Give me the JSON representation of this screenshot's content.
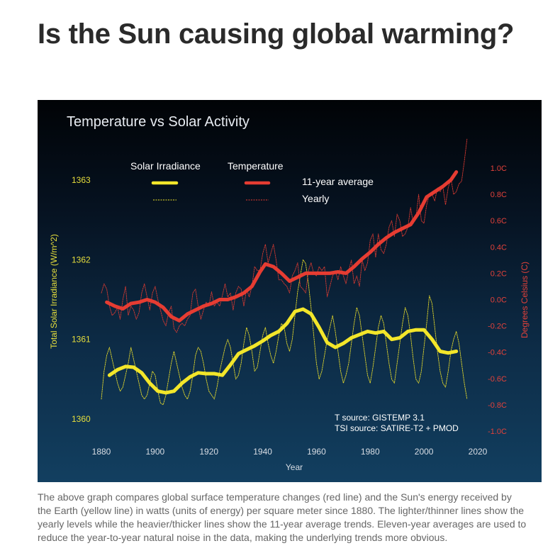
{
  "page": {
    "title": "Is the Sun causing global warming?",
    "caption": "The above graph compares global surface temperature changes (red line) and the Sun's energy received by the Earth (yellow line) in watts (units of energy) per square meter since 1880. The lighter/thinner lines show the yearly levels while the heavier/thicker lines show the 11-year average trends. Eleven-year averages are used to reduce the year-to-year natural noise in the data, making the underlying trends more obvious."
  },
  "colors": {
    "solar": "#f3e62a",
    "temperature": "#e63c32"
  },
  "chart_data": {
    "type": "line",
    "title": "Temperature vs Solar Activity",
    "xlabel": "Year",
    "ylabel_left": "Total Solar Irradiance (W/m^2)",
    "ylabel_right": "Degrees Celsius (C)",
    "xlim": [
      1870,
      2020
    ],
    "ylim_left": [
      1359.8,
      1363.2
    ],
    "ylim_right": [
      -1.0,
      1.0
    ],
    "x_ticks": [
      1880,
      1900,
      1920,
      1940,
      1960,
      1980,
      2000,
      2020
    ],
    "y_ticks_left": [
      1360,
      1361,
      1362,
      1363
    ],
    "y_ticks_right": [
      {
        "value": 1.0,
        "label": "1.0C"
      },
      {
        "value": 0.8,
        "label": "0.8C"
      },
      {
        "value": 0.6,
        "label": "0.6C"
      },
      {
        "value": 0.4,
        "label": "0.4C"
      },
      {
        "value": 0.2,
        "label": "0.2C"
      },
      {
        "value": 0.0,
        "label": "0.0C"
      },
      {
        "value": -0.2,
        "label": "-0.2C"
      },
      {
        "value": -0.4,
        "label": "-0.4C"
      },
      {
        "value": -0.6,
        "label": "-0.6C"
      },
      {
        "value": -0.8,
        "label": "-0.8C"
      },
      {
        "value": -1.0,
        "label": "-1.0C"
      }
    ],
    "legend": {
      "placement": "top-left",
      "col_solar": "Solar Irradiance",
      "col_temperature": "Temperature",
      "row_average": "11-year average",
      "row_yearly": "Yearly"
    },
    "sources": {
      "temperature": "T source: GISTEMP 3.1",
      "solar": "TSI source: SATIRE-T2 + PMOD"
    },
    "series": [
      {
        "name": "Temperature 11-year average",
        "axis": "right",
        "style": "thick",
        "x": [
          1882,
          1885,
          1888,
          1891,
          1894,
          1897,
          1900,
          1903,
          1906,
          1909,
          1912,
          1915,
          1918,
          1921,
          1924,
          1927,
          1930,
          1933,
          1936,
          1939,
          1941,
          1944,
          1947,
          1950,
          1953,
          1956,
          1959,
          1962,
          1965,
          1968,
          1971,
          1974,
          1977,
          1980,
          1983,
          1986,
          1989,
          1992,
          1995,
          1998,
          2001,
          2004,
          2007,
          2010,
          2012
        ],
        "y": [
          -0.02,
          -0.05,
          -0.07,
          -0.03,
          -0.02,
          0.0,
          -0.02,
          -0.06,
          -0.13,
          -0.16,
          -0.11,
          -0.08,
          -0.05,
          -0.03,
          0.0,
          0.0,
          0.02,
          0.05,
          0.1,
          0.21,
          0.27,
          0.25,
          0.2,
          0.14,
          0.17,
          0.2,
          0.2,
          0.2,
          0.2,
          0.21,
          0.2,
          0.25,
          0.31,
          0.36,
          0.42,
          0.47,
          0.51,
          0.54,
          0.57,
          0.66,
          0.78,
          0.82,
          0.86,
          0.91,
          0.97
        ]
      },
      {
        "name": "Temperature yearly",
        "axis": "right",
        "style": "thin",
        "x": [
          1880,
          1881,
          1882,
          1883,
          1884,
          1885,
          1886,
          1887,
          1888,
          1889,
          1890,
          1891,
          1892,
          1893,
          1894,
          1895,
          1896,
          1897,
          1898,
          1899,
          1900,
          1901,
          1902,
          1903,
          1904,
          1905,
          1906,
          1907,
          1908,
          1909,
          1910,
          1911,
          1912,
          1913,
          1914,
          1915,
          1916,
          1917,
          1918,
          1919,
          1920,
          1921,
          1922,
          1923,
          1924,
          1925,
          1926,
          1927,
          1928,
          1929,
          1930,
          1931,
          1932,
          1933,
          1934,
          1935,
          1936,
          1937,
          1938,
          1939,
          1940,
          1941,
          1942,
          1943,
          1944,
          1945,
          1946,
          1947,
          1948,
          1949,
          1950,
          1951,
          1952,
          1953,
          1954,
          1955,
          1956,
          1957,
          1958,
          1959,
          1960,
          1961,
          1962,
          1963,
          1964,
          1965,
          1966,
          1967,
          1968,
          1969,
          1970,
          1971,
          1972,
          1973,
          1974,
          1975,
          1976,
          1977,
          1978,
          1979,
          1980,
          1981,
          1982,
          1983,
          1984,
          1985,
          1986,
          1987,
          1988,
          1989,
          1990,
          1991,
          1992,
          1993,
          1994,
          1995,
          1996,
          1997,
          1998,
          1999,
          2000,
          2001,
          2002,
          2003,
          2004,
          2005,
          2006,
          2007,
          2008,
          2009,
          2010,
          2011,
          2012,
          2013,
          2014,
          2015,
          2016
        ],
        "y": [
          0.05,
          0.12,
          0.08,
          -0.05,
          -0.12,
          -0.1,
          -0.06,
          -0.15,
          0.0,
          0.1,
          -0.12,
          -0.05,
          -0.08,
          -0.15,
          -0.1,
          0.05,
          0.12,
          0.02,
          -0.08,
          0.05,
          0.1,
          0.0,
          -0.08,
          -0.16,
          -0.2,
          -0.1,
          -0.05,
          -0.22,
          -0.25,
          -0.2,
          -0.18,
          -0.2,
          -0.15,
          -0.12,
          0.05,
          0.08,
          -0.05,
          -0.15,
          -0.08,
          -0.02,
          -0.05,
          0.06,
          -0.05,
          -0.02,
          -0.05,
          0.03,
          0.12,
          0.02,
          0.05,
          -0.08,
          0.05,
          0.1,
          0.08,
          -0.05,
          0.08,
          0.02,
          0.1,
          0.25,
          0.22,
          0.22,
          0.35,
          0.42,
          0.28,
          0.35,
          0.42,
          0.3,
          0.15,
          0.15,
          0.12,
          0.1,
          0.05,
          0.18,
          0.22,
          0.28,
          0.1,
          0.08,
          0.05,
          0.22,
          0.28,
          0.2,
          0.18,
          0.25,
          0.22,
          0.25,
          0.02,
          0.1,
          0.18,
          0.22,
          0.15,
          0.25,
          0.18,
          0.12,
          0.22,
          0.3,
          0.12,
          0.18,
          0.1,
          0.3,
          0.22,
          0.28,
          0.45,
          0.5,
          0.32,
          0.5,
          0.38,
          0.35,
          0.42,
          0.55,
          0.6,
          0.48,
          0.65,
          0.6,
          0.48,
          0.5,
          0.55,
          0.7,
          0.58,
          0.62,
          0.8,
          0.6,
          0.58,
          0.72,
          0.8,
          0.8,
          0.75,
          0.85,
          0.82,
          0.86,
          0.72,
          0.85,
          0.92,
          0.8,
          0.82,
          0.88,
          0.9,
          1.05,
          1.22
        ]
      },
      {
        "name": "Solar Irradiance 11-year average",
        "axis": "left",
        "style": "thick",
        "x": [
          1883,
          1886,
          1889,
          1892,
          1895,
          1898,
          1901,
          1904,
          1907,
          1910,
          1913,
          1916,
          1919,
          1922,
          1925,
          1928,
          1931,
          1934,
          1937,
          1940,
          1943,
          1946,
          1949,
          1952,
          1955,
          1958,
          1961,
          1964,
          1967,
          1970,
          1973,
          1976,
          1979,
          1982,
          1985,
          1988,
          1991,
          1994,
          1997,
          2000,
          2003,
          2006,
          2009,
          2012
        ],
        "y": [
          1360.55,
          1360.62,
          1360.66,
          1360.65,
          1360.58,
          1360.45,
          1360.35,
          1360.33,
          1360.35,
          1360.45,
          1360.53,
          1360.58,
          1360.57,
          1360.57,
          1360.55,
          1360.68,
          1360.82,
          1360.87,
          1360.92,
          1360.98,
          1361.05,
          1361.1,
          1361.2,
          1361.35,
          1361.38,
          1361.32,
          1361.15,
          1360.96,
          1360.9,
          1360.95,
          1361.02,
          1361.06,
          1361.1,
          1361.08,
          1361.1,
          1361.0,
          1361.02,
          1361.1,
          1361.12,
          1361.12,
          1361.0,
          1360.85,
          1360.83,
          1360.85
        ]
      },
      {
        "name": "Solar Irradiance yearly",
        "axis": "left",
        "style": "thin",
        "x": [
          1880,
          1881,
          1882,
          1883,
          1884,
          1885,
          1886,
          1887,
          1888,
          1889,
          1890,
          1891,
          1892,
          1893,
          1894,
          1895,
          1896,
          1897,
          1898,
          1899,
          1900,
          1901,
          1902,
          1903,
          1904,
          1905,
          1906,
          1907,
          1908,
          1909,
          1910,
          1911,
          1912,
          1913,
          1914,
          1915,
          1916,
          1917,
          1918,
          1919,
          1920,
          1921,
          1922,
          1923,
          1924,
          1925,
          1926,
          1927,
          1928,
          1929,
          1930,
          1931,
          1932,
          1933,
          1934,
          1935,
          1936,
          1937,
          1938,
          1939,
          1940,
          1941,
          1942,
          1943,
          1944,
          1945,
          1946,
          1947,
          1948,
          1949,
          1950,
          1951,
          1952,
          1953,
          1954,
          1955,
          1956,
          1957,
          1958,
          1959,
          1960,
          1961,
          1962,
          1963,
          1964,
          1965,
          1966,
          1967,
          1968,
          1969,
          1970,
          1971,
          1972,
          1973,
          1974,
          1975,
          1976,
          1977,
          1978,
          1979,
          1980,
          1981,
          1982,
          1983,
          1984,
          1985,
          1986,
          1987,
          1988,
          1989,
          1990,
          1991,
          1992,
          1993,
          1994,
          1995,
          1996,
          1997,
          1998,
          1999,
          2000,
          2001,
          2002,
          2003,
          2004,
          2005,
          2006,
          2007,
          2008,
          2009,
          2010,
          2011,
          2012,
          2013,
          2014,
          2015,
          2016
        ],
        "y": [
          1360.25,
          1360.6,
          1360.8,
          1360.9,
          1360.75,
          1360.6,
          1360.45,
          1360.35,
          1360.4,
          1360.55,
          1360.7,
          1360.9,
          1360.75,
          1360.6,
          1360.45,
          1360.3,
          1360.25,
          1360.3,
          1360.45,
          1360.6,
          1360.55,
          1360.35,
          1360.2,
          1360.18,
          1360.3,
          1360.5,
          1360.7,
          1360.85,
          1360.7,
          1360.55,
          1360.4,
          1360.3,
          1360.25,
          1360.35,
          1360.55,
          1360.8,
          1360.9,
          1360.85,
          1360.7,
          1360.5,
          1360.35,
          1360.3,
          1360.25,
          1360.4,
          1360.6,
          1360.75,
          1360.9,
          1361.0,
          1360.9,
          1360.7,
          1360.5,
          1360.55,
          1360.7,
          1360.95,
          1361.15,
          1361.05,
          1360.85,
          1360.6,
          1360.65,
          1360.85,
          1361.05,
          1361.15,
          1360.95,
          1360.8,
          1360.7,
          1360.85,
          1361.05,
          1361.2,
          1361.15,
          1360.95,
          1360.85,
          1361.0,
          1361.3,
          1361.6,
          1361.8,
          1362.0,
          1361.95,
          1361.7,
          1361.4,
          1361.05,
          1360.7,
          1360.5,
          1360.6,
          1360.8,
          1361.0,
          1361.15,
          1361.3,
          1361.1,
          1360.85,
          1360.6,
          1360.45,
          1360.55,
          1360.7,
          1360.95,
          1361.2,
          1361.4,
          1361.3,
          1361.05,
          1360.8,
          1360.55,
          1360.45,
          1360.65,
          1360.9,
          1361.15,
          1361.3,
          1361.2,
          1360.95,
          1360.7,
          1360.5,
          1360.45,
          1360.7,
          1360.95,
          1361.2,
          1361.4,
          1361.3,
          1361.05,
          1360.75,
          1360.5,
          1360.45,
          1360.6,
          1360.9,
          1361.2,
          1361.55,
          1361.45,
          1361.15,
          1360.85,
          1360.6,
          1360.45,
          1360.4,
          1360.6,
          1360.85,
          1361.0,
          1361.1,
          1360.95,
          1360.7,
          1360.45,
          1360.25
        ]
      }
    ]
  }
}
